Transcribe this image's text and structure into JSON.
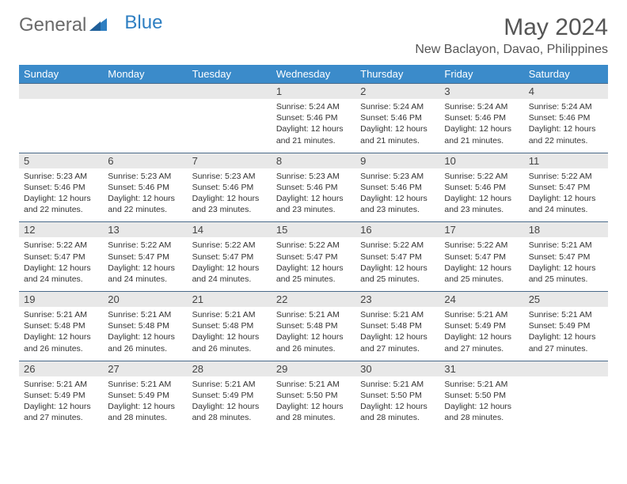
{
  "logo": {
    "text1": "General",
    "text2": "Blue"
  },
  "title": "May 2024",
  "location": "New Baclayon, Davao, Philippines",
  "colors": {
    "header_bg": "#3b8bca",
    "header_text": "#ffffff",
    "daynum_bg": "#e8e8e8",
    "border": "#4a6a8a",
    "text": "#333333",
    "logo_gray": "#6a6a6a",
    "logo_blue": "#2f7fc2"
  },
  "day_names": [
    "Sunday",
    "Monday",
    "Tuesday",
    "Wednesday",
    "Thursday",
    "Friday",
    "Saturday"
  ],
  "weeks": [
    {
      "nums": [
        "",
        "",
        "",
        "1",
        "2",
        "3",
        "4"
      ],
      "cells": [
        "",
        "",
        "",
        "Sunrise: 5:24 AM\nSunset: 5:46 PM\nDaylight: 12 hours\nand 21 minutes.",
        "Sunrise: 5:24 AM\nSunset: 5:46 PM\nDaylight: 12 hours\nand 21 minutes.",
        "Sunrise: 5:24 AM\nSunset: 5:46 PM\nDaylight: 12 hours\nand 21 minutes.",
        "Sunrise: 5:24 AM\nSunset: 5:46 PM\nDaylight: 12 hours\nand 22 minutes."
      ]
    },
    {
      "nums": [
        "5",
        "6",
        "7",
        "8",
        "9",
        "10",
        "11"
      ],
      "cells": [
        "Sunrise: 5:23 AM\nSunset: 5:46 PM\nDaylight: 12 hours\nand 22 minutes.",
        "Sunrise: 5:23 AM\nSunset: 5:46 PM\nDaylight: 12 hours\nand 22 minutes.",
        "Sunrise: 5:23 AM\nSunset: 5:46 PM\nDaylight: 12 hours\nand 23 minutes.",
        "Sunrise: 5:23 AM\nSunset: 5:46 PM\nDaylight: 12 hours\nand 23 minutes.",
        "Sunrise: 5:23 AM\nSunset: 5:46 PM\nDaylight: 12 hours\nand 23 minutes.",
        "Sunrise: 5:22 AM\nSunset: 5:46 PM\nDaylight: 12 hours\nand 23 minutes.",
        "Sunrise: 5:22 AM\nSunset: 5:47 PM\nDaylight: 12 hours\nand 24 minutes."
      ]
    },
    {
      "nums": [
        "12",
        "13",
        "14",
        "15",
        "16",
        "17",
        "18"
      ],
      "cells": [
        "Sunrise: 5:22 AM\nSunset: 5:47 PM\nDaylight: 12 hours\nand 24 minutes.",
        "Sunrise: 5:22 AM\nSunset: 5:47 PM\nDaylight: 12 hours\nand 24 minutes.",
        "Sunrise: 5:22 AM\nSunset: 5:47 PM\nDaylight: 12 hours\nand 24 minutes.",
        "Sunrise: 5:22 AM\nSunset: 5:47 PM\nDaylight: 12 hours\nand 25 minutes.",
        "Sunrise: 5:22 AM\nSunset: 5:47 PM\nDaylight: 12 hours\nand 25 minutes.",
        "Sunrise: 5:22 AM\nSunset: 5:47 PM\nDaylight: 12 hours\nand 25 minutes.",
        "Sunrise: 5:21 AM\nSunset: 5:47 PM\nDaylight: 12 hours\nand 25 minutes."
      ]
    },
    {
      "nums": [
        "19",
        "20",
        "21",
        "22",
        "23",
        "24",
        "25"
      ],
      "cells": [
        "Sunrise: 5:21 AM\nSunset: 5:48 PM\nDaylight: 12 hours\nand 26 minutes.",
        "Sunrise: 5:21 AM\nSunset: 5:48 PM\nDaylight: 12 hours\nand 26 minutes.",
        "Sunrise: 5:21 AM\nSunset: 5:48 PM\nDaylight: 12 hours\nand 26 minutes.",
        "Sunrise: 5:21 AM\nSunset: 5:48 PM\nDaylight: 12 hours\nand 26 minutes.",
        "Sunrise: 5:21 AM\nSunset: 5:48 PM\nDaylight: 12 hours\nand 27 minutes.",
        "Sunrise: 5:21 AM\nSunset: 5:49 PM\nDaylight: 12 hours\nand 27 minutes.",
        "Sunrise: 5:21 AM\nSunset: 5:49 PM\nDaylight: 12 hours\nand 27 minutes."
      ]
    },
    {
      "nums": [
        "26",
        "27",
        "28",
        "29",
        "30",
        "31",
        ""
      ],
      "cells": [
        "Sunrise: 5:21 AM\nSunset: 5:49 PM\nDaylight: 12 hours\nand 27 minutes.",
        "Sunrise: 5:21 AM\nSunset: 5:49 PM\nDaylight: 12 hours\nand 28 minutes.",
        "Sunrise: 5:21 AM\nSunset: 5:49 PM\nDaylight: 12 hours\nand 28 minutes.",
        "Sunrise: 5:21 AM\nSunset: 5:50 PM\nDaylight: 12 hours\nand 28 minutes.",
        "Sunrise: 5:21 AM\nSunset: 5:50 PM\nDaylight: 12 hours\nand 28 minutes.",
        "Sunrise: 5:21 AM\nSunset: 5:50 PM\nDaylight: 12 hours\nand 28 minutes.",
        ""
      ]
    }
  ]
}
